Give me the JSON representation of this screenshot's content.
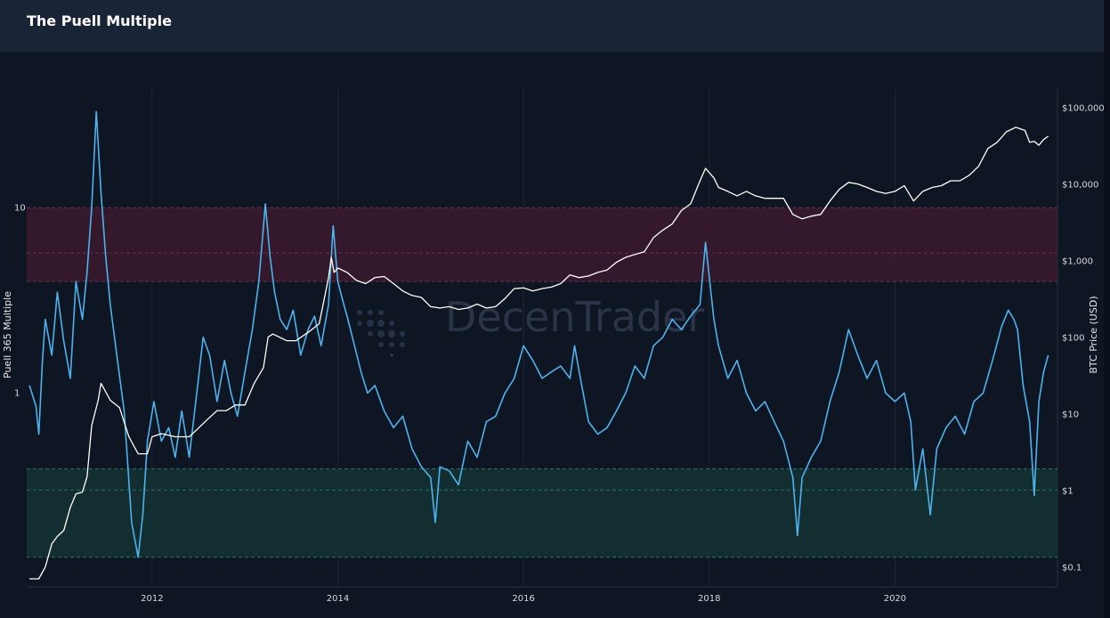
{
  "page": {
    "title": "The Puell Multiple"
  },
  "chart_data": {
    "type": "line",
    "title": "The Puell Multiple",
    "ylabel_left": "Puell 365 Multiple",
    "ylabel_right": "BTC Price (USD)",
    "x_tick_labels": [
      "2012",
      "2014",
      "2016",
      "2018",
      "2020"
    ],
    "left_tick_labels": [
      "10",
      "1"
    ],
    "right_tick_labels": [
      "$100,000",
      "$10,000",
      "$1,000",
      "$100",
      "$10",
      "$1",
      "$0.1"
    ],
    "x_range": [
      2010.65,
      2021.75
    ],
    "left_scale": "log",
    "left_range": [
      0.09,
      40
    ],
    "right_scale": "log",
    "right_range": [
      0.055,
      140000
    ],
    "bands": [
      {
        "name": "red zone",
        "from": 4,
        "to": 10,
        "mid": 5.7,
        "color": "#3b1a2e"
      },
      {
        "name": "green zone",
        "from": 0.13,
        "to": 0.39,
        "mid": 0.3,
        "color": "#133232"
      }
    ],
    "series": [
      {
        "color": "#4db3ec",
        "x": [
          2010.68,
          2010.75,
          2010.78,
          2010.82,
          2010.85,
          2010.92,
          2010.98,
          2011.05,
          2011.12,
          2011.18,
          2011.25,
          2011.3,
          2011.35,
          2011.4,
          2011.45,
          2011.5,
          2011.55,
          2011.62,
          2011.7,
          2011.78,
          2011.85,
          2011.9,
          2011.95,
          2012.02,
          2012.1,
          2012.18,
          2012.25,
          2012.32,
          2012.4,
          2012.5,
          2012.55,
          2012.62,
          2012.7,
          2012.78,
          2012.85,
          2012.92,
          2013.0,
          2013.08,
          2013.15,
          2013.22,
          2013.27,
          2013.32,
          2013.38,
          2013.45,
          2013.52,
          2013.6,
          2013.68,
          2013.75,
          2013.82,
          2013.9,
          2013.95,
          2014.0,
          2014.05,
          2014.1,
          2014.18,
          2014.25,
          2014.32,
          2014.4,
          2014.5,
          2014.6,
          2014.7,
          2014.8,
          2014.9,
          2015.0,
          2015.05,
          2015.1,
          2015.2,
          2015.3,
          2015.4,
          2015.5,
          2015.6,
          2015.7,
          2015.8,
          2015.9,
          2016.0,
          2016.1,
          2016.2,
          2016.3,
          2016.4,
          2016.5,
          2016.55,
          2016.6,
          2016.7,
          2016.8,
          2016.9,
          2017.0,
          2017.1,
          2017.2,
          2017.3,
          2017.4,
          2017.5,
          2017.6,
          2017.7,
          2017.8,
          2017.9,
          2017.96,
          2018.05,
          2018.1,
          2018.2,
          2018.3,
          2018.4,
          2018.5,
          2018.6,
          2018.7,
          2018.8,
          2018.9,
          2018.95,
          2019.0,
          2019.1,
          2019.2,
          2019.3,
          2019.4,
          2019.5,
          2019.6,
          2019.7,
          2019.8,
          2019.9,
          2020.0,
          2020.1,
          2020.17,
          2020.22,
          2020.3,
          2020.38,
          2020.45,
          2020.55,
          2020.65,
          2020.75,
          2020.85,
          2020.95,
          2021.05,
          2021.15,
          2021.22,
          2021.28,
          2021.32,
          2021.38,
          2021.45,
          2021.5,
          2021.55,
          2021.6,
          2021.65
        ],
        "values": [
          1.1,
          0.85,
          0.6,
          1.5,
          2.5,
          1.6,
          3.5,
          1.9,
          1.2,
          4.0,
          2.5,
          4.5,
          10,
          33,
          12,
          5.5,
          3.0,
          1.6,
          0.8,
          0.2,
          0.13,
          0.22,
          0.55,
          0.9,
          0.55,
          0.65,
          0.45,
          0.8,
          0.45,
          1.2,
          2.0,
          1.6,
          0.9,
          1.5,
          1.0,
          0.75,
          1.3,
          2.2,
          4.0,
          10.5,
          5.5,
          3.5,
          2.5,
          2.2,
          2.8,
          1.6,
          2.2,
          2.6,
          1.8,
          3.0,
          8.0,
          4.0,
          3.2,
          2.6,
          1.8,
          1.3,
          1.0,
          1.1,
          0.8,
          0.65,
          0.75,
          0.5,
          0.4,
          0.35,
          0.2,
          0.4,
          0.38,
          0.32,
          0.55,
          0.45,
          0.7,
          0.75,
          1.0,
          1.2,
          1.8,
          1.5,
          1.2,
          1.3,
          1.4,
          1.2,
          1.8,
          1.3,
          0.7,
          0.6,
          0.65,
          0.8,
          1.0,
          1.4,
          1.2,
          1.8,
          2.0,
          2.5,
          2.2,
          2.6,
          3.0,
          6.5,
          2.5,
          1.8,
          1.2,
          1.5,
          1.0,
          0.8,
          0.9,
          0.7,
          0.55,
          0.35,
          0.17,
          0.35,
          0.45,
          0.55,
          0.9,
          1.3,
          2.2,
          1.6,
          1.2,
          1.5,
          1.0,
          0.9,
          1.0,
          0.7,
          0.3,
          0.5,
          0.22,
          0.5,
          0.65,
          0.75,
          0.6,
          0.9,
          1.0,
          1.5,
          2.3,
          2.8,
          2.5,
          2.2,
          1.1,
          0.7,
          0.28,
          0.9,
          1.3,
          1.6
        ]
      },
      {
        "color": "#ffffff",
        "x": [
          2010.68,
          2010.75,
          2010.78,
          2010.85,
          2010.92,
          2010.98,
          2011.05,
          2011.12,
          2011.18,
          2011.25,
          2011.3,
          2011.35,
          2011.42,
          2011.45,
          2011.55,
          2011.65,
          2011.75,
          2011.85,
          2011.95,
          2012.0,
          2012.1,
          2012.25,
          2012.4,
          2012.5,
          2012.6,
          2012.7,
          2012.8,
          2012.9,
          2013.0,
          2013.1,
          2013.2,
          2013.25,
          2013.3,
          2013.45,
          2013.55,
          2013.7,
          2013.8,
          2013.9,
          2013.93,
          2013.96,
          2014.0,
          2014.1,
          2014.2,
          2014.3,
          2014.4,
          2014.5,
          2014.6,
          2014.7,
          2014.8,
          2014.9,
          2015.0,
          2015.1,
          2015.2,
          2015.3,
          2015.4,
          2015.5,
          2015.6,
          2015.7,
          2015.8,
          2015.9,
          2016.0,
          2016.1,
          2016.2,
          2016.3,
          2016.4,
          2016.5,
          2016.6,
          2016.7,
          2016.8,
          2016.9,
          2017.0,
          2017.1,
          2017.2,
          2017.3,
          2017.4,
          2017.5,
          2017.6,
          2017.7,
          2017.8,
          2017.9,
          2017.96,
          2018.05,
          2018.1,
          2018.2,
          2018.3,
          2018.4,
          2018.5,
          2018.6,
          2018.7,
          2018.8,
          2018.9,
          2019.0,
          2019.1,
          2019.2,
          2019.3,
          2019.4,
          2019.5,
          2019.6,
          2019.7,
          2019.8,
          2019.9,
          2020.0,
          2020.1,
          2020.2,
          2020.3,
          2020.4,
          2020.5,
          2020.6,
          2020.7,
          2020.8,
          2020.9,
          2021.0,
          2021.1,
          2021.2,
          2021.3,
          2021.4,
          2021.45,
          2021.5,
          2021.55,
          2021.6,
          2021.65
        ],
        "values": [
          0.07,
          0.07,
          0.07,
          0.1,
          0.2,
          0.25,
          0.3,
          0.6,
          0.9,
          0.95,
          1.5,
          7,
          15,
          25,
          15,
          12,
          5,
          3,
          3,
          5,
          5.5,
          5,
          5,
          6.5,
          8.5,
          11,
          11,
          13,
          13,
          25,
          40,
          100,
          110,
          90,
          90,
          120,
          150,
          600,
          1100,
          700,
          800,
          700,
          550,
          500,
          600,
          620,
          500,
          400,
          350,
          330,
          250,
          240,
          250,
          230,
          240,
          270,
          240,
          250,
          320,
          430,
          440,
          400,
          430,
          450,
          500,
          650,
          600,
          630,
          700,
          750,
          950,
          1100,
          1200,
          1300,
          2000,
          2500,
          3000,
          4500,
          5500,
          11000,
          16000,
          12000,
          9000,
          8000,
          7000,
          8000,
          7000,
          6500,
          6500,
          6500,
          4000,
          3500,
          3800,
          4000,
          6000,
          8500,
          10500,
          10000,
          9000,
          8000,
          7500,
          8000,
          9500,
          6000,
          8000,
          9000,
          9500,
          11000,
          11000,
          13000,
          17000,
          29000,
          35000,
          48000,
          55000,
          50000,
          35000,
          36000,
          32000,
          38000,
          42000
        ]
      }
    ]
  }
}
